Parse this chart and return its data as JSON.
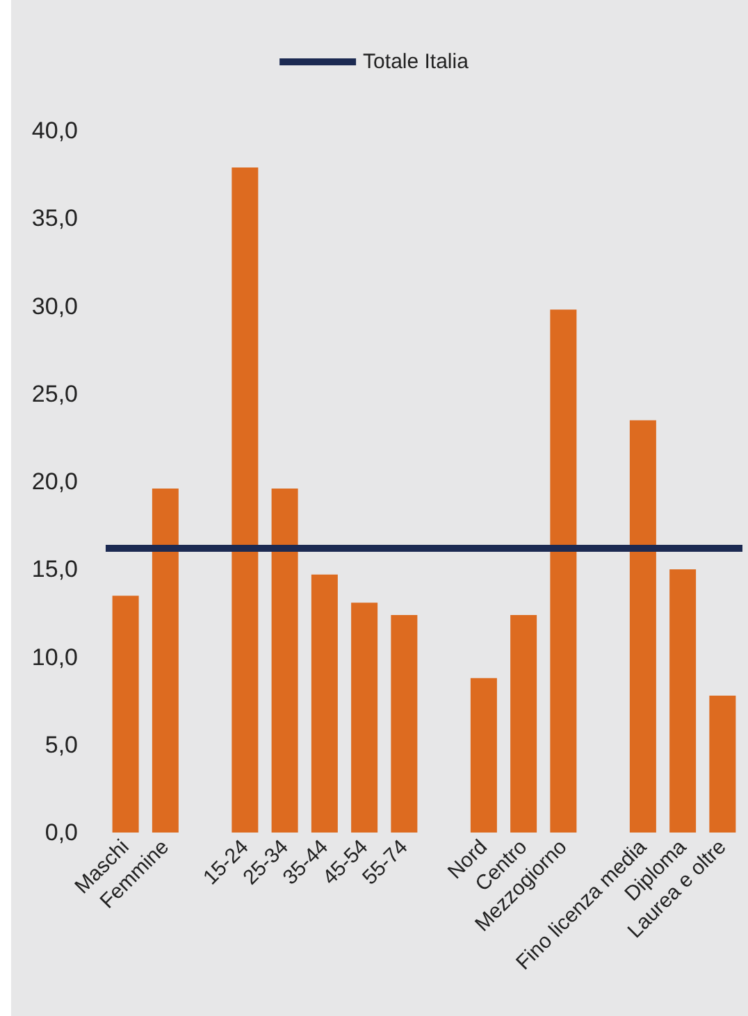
{
  "chart_data": {
    "type": "bar",
    "categories": [
      "Maschi",
      "Femmine",
      null,
      "15-24",
      "25-34",
      "35-44",
      "45-54",
      "55-74",
      null,
      "Nord",
      "Centro",
      "Mezzogiorno",
      null,
      "Fino licenza media",
      "Diploma",
      "Laurea e oltre"
    ],
    "series": [
      {
        "color": "#dd6b20",
        "values": [
          13.5,
          19.6,
          null,
          37.9,
          19.6,
          14.7,
          13.1,
          12.4,
          null,
          8.8,
          12.4,
          29.8,
          null,
          23.5,
          15.0,
          7.8
        ]
      }
    ],
    "ylim": [
      0,
      40
    ],
    "yticks": [
      {
        "value": 0,
        "label": "0,0"
      },
      {
        "value": 5,
        "label": "5,0"
      },
      {
        "value": 10,
        "label": "10,0"
      },
      {
        "value": 15,
        "label": "15,0"
      },
      {
        "value": 20,
        "label": "20,0"
      },
      {
        "value": 25,
        "label": "25,0"
      },
      {
        "value": 30,
        "label": "30,0"
      },
      {
        "value": 35,
        "label": "35,0"
      },
      {
        "value": 40,
        "label": "40,0"
      }
    ],
    "ref_lines": [
      {
        "axis": "y",
        "value": 16.2,
        "label": "Totale Italia",
        "color": "#1c2a52"
      }
    ],
    "grid": false,
    "legend": "top"
  }
}
